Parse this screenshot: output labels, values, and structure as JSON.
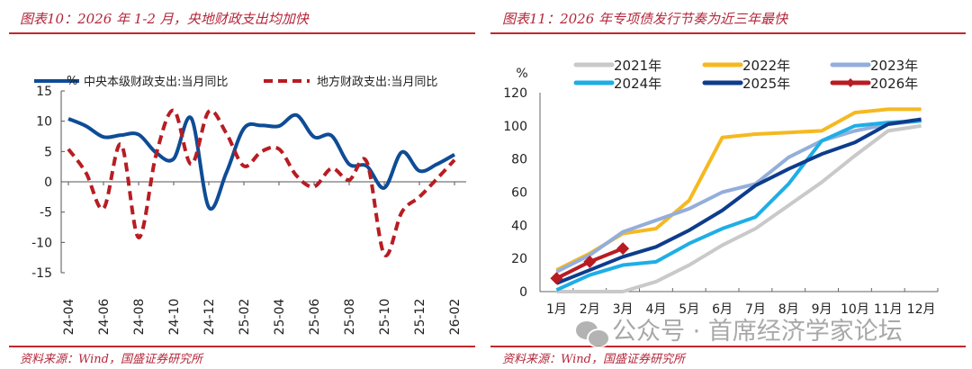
{
  "figures": [
    {
      "title": "图表10：2026 年 1-2 月，央地财政支出均加快",
      "source": "资料来源：Wind，国盛证券研究所"
    },
    {
      "title": "图表11：2026 年专项债发行节奏为近三年最快",
      "source": "资料来源：Wind，国盛证券研究所"
    }
  ],
  "watermark": "公众号 · 首席经济学家论坛",
  "chart_data": [
    {
      "type": "line",
      "title": "图表10：2026 年 1-2 月，央地财政支出均加快",
      "ylabel": "%",
      "xlabel": "",
      "ylim": [
        -15,
        15
      ],
      "yticks": [
        15,
        10,
        5,
        0,
        -5,
        -10,
        -15
      ],
      "x": [
        "24-04",
        "24-05",
        "24-06",
        "24-07",
        "24-08",
        "24-09",
        "24-10",
        "24-11",
        "24-12",
        "25-01",
        "25-02",
        "25-03",
        "25-04",
        "25-05",
        "25-06",
        "25-07",
        "25-08",
        "25-09",
        "25-10",
        "25-11",
        "25-12",
        "26-01",
        "26-02"
      ],
      "xtick_labels": [
        "24-04",
        "24-06",
        "24-08",
        "24-10",
        "24-12",
        "25-02",
        "25-04",
        "25-06",
        "25-08",
        "25-10",
        "25-12",
        "26-02"
      ],
      "legend_position": "top",
      "grid": false,
      "series": [
        {
          "name": "中央本级财政支出:当月同比",
          "color": "#0e4c96",
          "style": "solid",
          "values": [
            10.4,
            9.2,
            7.4,
            7.7,
            7.8,
            4.8,
            3.8,
            10.5,
            -4.2,
            1.5,
            8.8,
            9.3,
            9.2,
            11.0,
            7.4,
            7.6,
            2.9,
            2.6,
            -1.0,
            4.9,
            1.8,
            2.9,
            4.5
          ]
        },
        {
          "name": "地方财政支出:当月同比",
          "color": "#b81c22",
          "style": "dashed",
          "values": [
            5.4,
            1.5,
            -4.4,
            6.2,
            -9.2,
            4.5,
            11.8,
            2.9,
            11.6,
            8.0,
            2.6,
            5.0,
            5.4,
            1.0,
            -0.8,
            2.2,
            0.3,
            3.3,
            -12.0,
            -5.0,
            -2.5,
            0.5,
            3.6
          ]
        }
      ]
    },
    {
      "type": "line",
      "title": "图表11：2026 年专项债发行节奏为近三年最快",
      "ylabel": "%",
      "xlabel": "",
      "ylim": [
        0,
        120
      ],
      "yticks": [
        0,
        20,
        40,
        60,
        80,
        100,
        120
      ],
      "categories": [
        "1月",
        "2月",
        "3月",
        "4月",
        "5月",
        "6月",
        "7月",
        "8月",
        "9月",
        "10月",
        "11月",
        "12月"
      ],
      "legend_position": "top",
      "grid": false,
      "series": [
        {
          "name": "2021年",
          "color": "#c9c9c9",
          "values": [
            0,
            0,
            0,
            6,
            16,
            28,
            38,
            52,
            66,
            82,
            97,
            100
          ]
        },
        {
          "name": "2022年",
          "color": "#f5b920",
          "values": [
            13,
            23,
            35,
            38,
            55,
            93,
            95,
            96,
            97,
            108,
            110,
            110
          ]
        },
        {
          "name": "2023年",
          "color": "#94aedb",
          "values": [
            12,
            22,
            36,
            43,
            50,
            60,
            65,
            81,
            91,
            97,
            101,
            103
          ]
        },
        {
          "name": "2024年",
          "color": "#1eaee6",
          "values": [
            1,
            10,
            16,
            18,
            29,
            38,
            45,
            65,
            91,
            100,
            102,
            103
          ]
        },
        {
          "name": "2025年",
          "color": "#0e3c8c",
          "values": [
            5,
            13,
            21,
            27,
            37,
            49,
            64,
            74,
            83,
            90,
            101,
            104
          ]
        },
        {
          "name": "2026年",
          "color": "#b81c22",
          "marker": "diamond",
          "values": [
            8,
            18,
            26
          ]
        }
      ]
    }
  ]
}
